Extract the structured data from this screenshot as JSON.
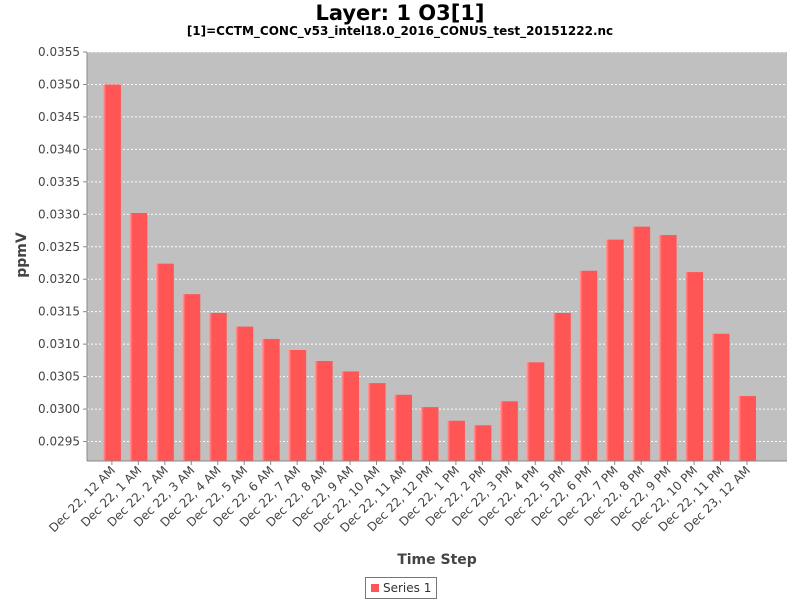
{
  "chart_data": {
    "type": "bar",
    "title": "Layer: 1 O3[1]",
    "subtitle": "[1]=CCTM_CONC_v53_intel18.0_2016_CONUS_test_20151222.nc",
    "xlabel": "Time Step",
    "ylabel": "ppmV",
    "ylim": [
      0.0292,
      0.0355
    ],
    "yticks": [
      "0.0295",
      "0.0300",
      "0.0305",
      "0.0310",
      "0.0315",
      "0.0320",
      "0.0325",
      "0.0330",
      "0.0335",
      "0.0340",
      "0.0345",
      "0.0350",
      "0.0355"
    ],
    "grid": true,
    "legend_position": "bottom",
    "categories": [
      "Dec 22, 12 AM",
      "Dec 22, 1 AM",
      "Dec 22, 2 AM",
      "Dec 22, 3 AM",
      "Dec 22, 4 AM",
      "Dec 22, 5 AM",
      "Dec 22, 6 AM",
      "Dec 22, 7 AM",
      "Dec 22, 8 AM",
      "Dec 22, 9 AM",
      "Dec 22, 10 AM",
      "Dec 22, 11 AM",
      "Dec 22, 12 PM",
      "Dec 22, 1 PM",
      "Dec 22, 2 PM",
      "Dec 22, 3 PM",
      "Dec 22, 4 PM",
      "Dec 22, 5 PM",
      "Dec 22, 6 PM",
      "Dec 22, 7 PM",
      "Dec 22, 8 PM",
      "Dec 22, 9 PM",
      "Dec 22, 10 PM",
      "Dec 22, 11 PM",
      "Dec 23, 12 AM"
    ],
    "series": [
      {
        "name": "Series 1",
        "color": "#ff5555",
        "values": [
          0.035,
          0.03302,
          0.03224,
          0.03177,
          0.03148,
          0.03127,
          0.03108,
          0.03091,
          0.03074,
          0.03058,
          0.0304,
          0.03022,
          0.03003,
          0.02982,
          0.02975,
          0.03012,
          0.03072,
          0.03148,
          0.03213,
          0.03261,
          0.03281,
          0.03268,
          0.03211,
          0.03116,
          0.0302
        ]
      }
    ],
    "colors": {
      "plot_background": "#c0c0c0",
      "gridline": "#ffffff",
      "bar": "#ff5555",
      "bar_highlight": "#ffaaaa"
    }
  }
}
